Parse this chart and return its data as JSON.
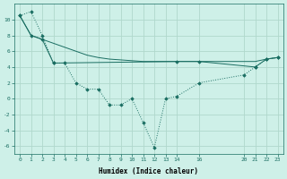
{
  "xlabel": "Humidex (Indice chaleur)",
  "background_color": "#cef0e8",
  "line_color": "#1a6e62",
  "grid_color": "#b0d8cc",
  "ylim": [
    -7,
    12
  ],
  "xlim": [
    -0.5,
    23.5
  ],
  "yticks": [
    -6,
    -4,
    -2,
    0,
    2,
    4,
    6,
    8,
    10
  ],
  "xticks": [
    0,
    1,
    2,
    3,
    4,
    5,
    6,
    7,
    8,
    9,
    10,
    11,
    12,
    13,
    14,
    16,
    20,
    21,
    22,
    23
  ],
  "series1_x": [
    0,
    1,
    2,
    3,
    4,
    5,
    6,
    7,
    8,
    9,
    10,
    11,
    12,
    13,
    14,
    16,
    20,
    21,
    22,
    23
  ],
  "series1_y": [
    10.5,
    11.0,
    8.0,
    4.5,
    4.5,
    2.0,
    1.2,
    1.2,
    -0.8,
    -0.8,
    0.0,
    -3.0,
    -6.2,
    0.0,
    0.3,
    2.0,
    3.0,
    4.0,
    5.0,
    5.2
  ],
  "series2_x": [
    0,
    1,
    2,
    3,
    14,
    16,
    21,
    22,
    23
  ],
  "series2_y": [
    10.5,
    8.0,
    7.5,
    4.5,
    4.7,
    4.7,
    4.0,
    5.0,
    5.2
  ],
  "series3_x": [
    0,
    1,
    2,
    3,
    4,
    5,
    6,
    7,
    8,
    9,
    10,
    11,
    12,
    13,
    14,
    16,
    20,
    21,
    22,
    23
  ],
  "series3_y": [
    10.5,
    8.0,
    7.5,
    7.0,
    6.5,
    6.0,
    5.5,
    5.2,
    5.0,
    4.9,
    4.8,
    4.7,
    4.7,
    4.7,
    4.7,
    4.7,
    4.7,
    4.7,
    5.0,
    5.2
  ]
}
